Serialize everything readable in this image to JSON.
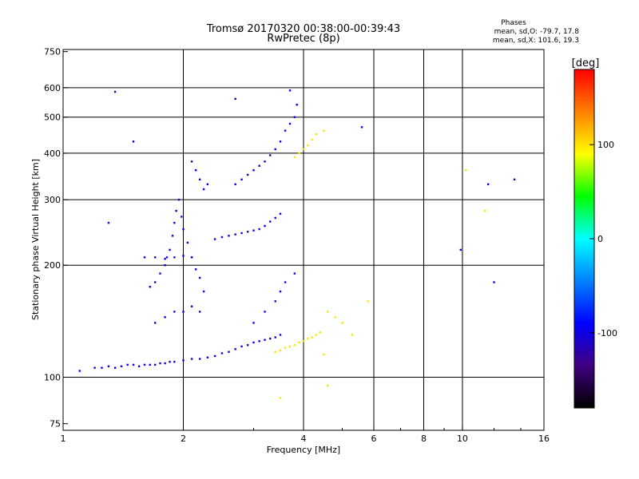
{
  "chart_data": {
    "type": "scatter",
    "title": "Tromsø 20170320 00:38:00-00:39:43",
    "subtitle": "RwPretec (8p)",
    "xlabel": "Frequency [MHz]",
    "ylabel": "Stationary phase Virtual Height [km]",
    "x_scale": "log",
    "y_scale": "log",
    "xlim": [
      1,
      16
    ],
    "ylim": [
      72,
      760
    ],
    "x_ticks": [
      1,
      2,
      4,
      6,
      8,
      10,
      16
    ],
    "x_tick_labels": [
      "1",
      "2",
      "4",
      "6",
      "8",
      "10",
      "16"
    ],
    "y_ticks": [
      75,
      100,
      200,
      300,
      400,
      500,
      600,
      750
    ],
    "y_tick_labels": [
      "75",
      "100",
      "200",
      "300",
      "400",
      "500",
      "600",
      "750"
    ],
    "x_grid_lines": [
      2,
      4,
      6,
      8,
      10
    ],
    "y_grid_lines": [
      100,
      200,
      300,
      400,
      500,
      600
    ],
    "grid": true,
    "legend_position": "top-right",
    "legend_title": "Phases",
    "legend_lines": [
      "mean, sd,O: -79.7, 17.8",
      "mean, sd,X: 101.6, 19.3"
    ],
    "colorbar": {
      "label": "[deg]",
      "range": [
        -180,
        180
      ],
      "ticks": [
        100,
        0,
        -100
      ],
      "tick_labels": [
        "100",
        "0",
        "-100"
      ],
      "colors": [
        "#ff0000",
        "#ff8000",
        "#ffff00",
        "#00ff00",
        "#00ffff",
        "#0080ff",
        "#0000ff",
        "#400080",
        "#000000"
      ]
    },
    "series": [
      {
        "mode": "O",
        "phase_deg": -100,
        "points": [
          [
            1.1,
            104
          ],
          [
            1.2,
            106
          ],
          [
            1.25,
            106
          ],
          [
            1.3,
            107
          ],
          [
            1.35,
            106
          ],
          [
            1.4,
            107
          ],
          [
            1.45,
            108
          ],
          [
            1.5,
            108
          ],
          [
            1.55,
            107
          ],
          [
            1.6,
            108
          ],
          [
            1.65,
            108
          ],
          [
            1.7,
            108
          ],
          [
            1.75,
            109
          ],
          [
            1.8,
            109
          ],
          [
            1.85,
            110
          ],
          [
            1.9,
            110
          ],
          [
            2.0,
            111
          ],
          [
            2.1,
            112
          ],
          [
            2.2,
            112
          ],
          [
            2.3,
            113
          ],
          [
            2.4,
            114
          ],
          [
            2.5,
            116
          ],
          [
            2.6,
            117
          ],
          [
            2.7,
            119
          ],
          [
            2.8,
            121
          ],
          [
            2.9,
            122
          ],
          [
            3.0,
            124
          ],
          [
            3.1,
            125
          ],
          [
            3.2,
            126
          ],
          [
            3.3,
            127
          ],
          [
            3.4,
            128
          ],
          [
            3.5,
            130
          ],
          [
            1.65,
            175
          ],
          [
            1.7,
            180
          ],
          [
            1.75,
            190
          ],
          [
            1.8,
            200
          ],
          [
            1.82,
            210
          ],
          [
            1.85,
            220
          ],
          [
            1.88,
            240
          ],
          [
            1.9,
            260
          ],
          [
            1.92,
            280
          ],
          [
            1.95,
            300
          ],
          [
            1.98,
            270
          ],
          [
            2.0,
            250
          ],
          [
            2.05,
            230
          ],
          [
            2.1,
            210
          ],
          [
            2.15,
            195
          ],
          [
            2.2,
            185
          ],
          [
            2.25,
            170
          ],
          [
            1.6,
            210
          ],
          [
            1.7,
            210
          ],
          [
            1.8,
            208
          ],
          [
            1.9,
            210
          ],
          [
            2.0,
            212
          ],
          [
            2.1,
            210
          ],
          [
            1.7,
            140
          ],
          [
            1.8,
            145
          ],
          [
            1.9,
            150
          ],
          [
            2.0,
            150
          ],
          [
            2.1,
            155
          ],
          [
            2.2,
            150
          ],
          [
            2.1,
            380
          ],
          [
            2.15,
            360
          ],
          [
            2.2,
            340
          ],
          [
            2.25,
            320
          ],
          [
            2.3,
            330
          ],
          [
            2.4,
            235
          ],
          [
            2.5,
            238
          ],
          [
            2.6,
            240
          ],
          [
            2.7,
            242
          ],
          [
            2.8,
            244
          ],
          [
            2.9,
            246
          ],
          [
            3.0,
            248
          ],
          [
            3.1,
            250
          ],
          [
            3.2,
            255
          ],
          [
            3.3,
            262
          ],
          [
            3.4,
            268
          ],
          [
            3.5,
            275
          ],
          [
            2.7,
            330
          ],
          [
            2.8,
            340
          ],
          [
            2.9,
            350
          ],
          [
            3.0,
            360
          ],
          [
            3.1,
            370
          ],
          [
            3.2,
            380
          ],
          [
            3.3,
            395
          ],
          [
            3.4,
            410
          ],
          [
            3.5,
            430
          ],
          [
            3.6,
            460
          ],
          [
            3.7,
            480
          ],
          [
            3.8,
            500
          ],
          [
            3.85,
            540
          ],
          [
            3.0,
            140
          ],
          [
            3.2,
            150
          ],
          [
            3.4,
            160
          ],
          [
            3.5,
            170
          ],
          [
            3.6,
            180
          ],
          [
            3.8,
            190
          ],
          [
            1.3,
            260
          ],
          [
            1.35,
            585
          ],
          [
            1.5,
            430
          ],
          [
            2.7,
            560
          ],
          [
            3.7,
            590
          ],
          [
            5.6,
            470
          ],
          [
            11.6,
            330
          ],
          [
            12.0,
            180
          ],
          [
            13.5,
            340
          ],
          [
            9.9,
            220
          ]
        ]
      },
      {
        "mode": "X",
        "phase_deg": 100,
        "points": [
          [
            3.4,
            117
          ],
          [
            3.5,
            118
          ],
          [
            3.6,
            120
          ],
          [
            3.7,
            121
          ],
          [
            3.8,
            122
          ],
          [
            3.9,
            124
          ],
          [
            4.0,
            125
          ],
          [
            4.1,
            127
          ],
          [
            4.2,
            128
          ],
          [
            4.3,
            130
          ],
          [
            4.4,
            132
          ],
          [
            3.8,
            390
          ],
          [
            3.9,
            400
          ],
          [
            4.0,
            410
          ],
          [
            4.1,
            420
          ],
          [
            4.2,
            435
          ],
          [
            4.3,
            450
          ],
          [
            4.5,
            460
          ],
          [
            4.6,
            150
          ],
          [
            4.8,
            145
          ],
          [
            5.0,
            140
          ],
          [
            5.8,
            160
          ],
          [
            5.3,
            130
          ],
          [
            4.5,
            115
          ],
          [
            4.6,
            95
          ],
          [
            10.2,
            360
          ],
          [
            11.4,
            280
          ],
          [
            3.5,
            88
          ]
        ]
      }
    ]
  }
}
